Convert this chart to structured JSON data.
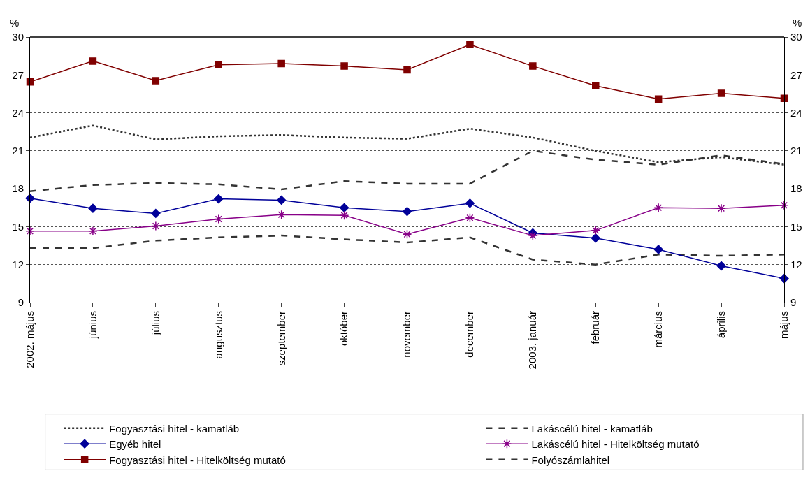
{
  "chart_data": {
    "type": "line",
    "categories": [
      "2002. május",
      "június",
      "július",
      "augusztus",
      "szeptember",
      "október",
      "november",
      "december",
      "2003. január",
      "február",
      "március",
      "április",
      "május"
    ],
    "series": [
      {
        "name": "Fogyasztási hitel - kamatláb",
        "color": "#333333",
        "line_style": "dotted",
        "marker": "none",
        "values": [
          22.05,
          23.0,
          21.9,
          22.15,
          22.25,
          22.05,
          21.95,
          22.75,
          22.05,
          21.0,
          20.1,
          20.5,
          19.9
        ]
      },
      {
        "name": "Lakáscélú hitel - kamatláb",
        "color": "#333333",
        "line_style": "dashed",
        "marker": "none",
        "values": [
          13.3,
          13.3,
          13.9,
          14.15,
          14.3,
          14.0,
          13.75,
          14.15,
          12.4,
          12.0,
          12.8,
          12.7,
          12.8
        ]
      },
      {
        "name": "Egyéb hitel",
        "color": "#000099",
        "line_style": "solid",
        "marker": "diamond",
        "values": [
          17.25,
          16.45,
          16.05,
          17.2,
          17.1,
          16.5,
          16.2,
          16.85,
          14.5,
          14.1,
          13.2,
          11.9,
          10.9
        ]
      },
      {
        "name": "Lakáscélú hitel - Hitelköltség mutató",
        "color": "#880088",
        "line_style": "solid",
        "marker": "cross",
        "values": [
          14.65,
          14.65,
          15.05,
          15.6,
          15.95,
          15.9,
          14.4,
          15.7,
          14.3,
          14.7,
          16.5,
          16.45,
          16.7
        ]
      },
      {
        "name": "Fogyasztási hitel - Hitelköltség mutató",
        "color": "#800000",
        "line_style": "solid",
        "marker": "square",
        "values": [
          26.45,
          28.1,
          26.55,
          27.8,
          27.9,
          27.7,
          27.4,
          29.4,
          27.7,
          26.15,
          25.1,
          25.55,
          25.15
        ]
      },
      {
        "name": "Folyószámlahitel",
        "color": "#333333",
        "line_style": "dashed",
        "marker": "none",
        "values": [
          17.8,
          18.3,
          18.45,
          18.35,
          17.95,
          18.6,
          18.4,
          18.4,
          21.0,
          20.3,
          19.9,
          20.65,
          19.95
        ]
      }
    ],
    "ylabel": "%",
    "y2label": "%",
    "ylim": [
      9,
      30
    ],
    "yticks": [
      9,
      12,
      15,
      18,
      21,
      24,
      27,
      30
    ],
    "y2lim": [
      9,
      30
    ],
    "y2ticks": [
      9,
      12,
      15,
      18,
      21,
      24,
      27,
      30
    ],
    "grid": "y",
    "legend": "bottom"
  }
}
